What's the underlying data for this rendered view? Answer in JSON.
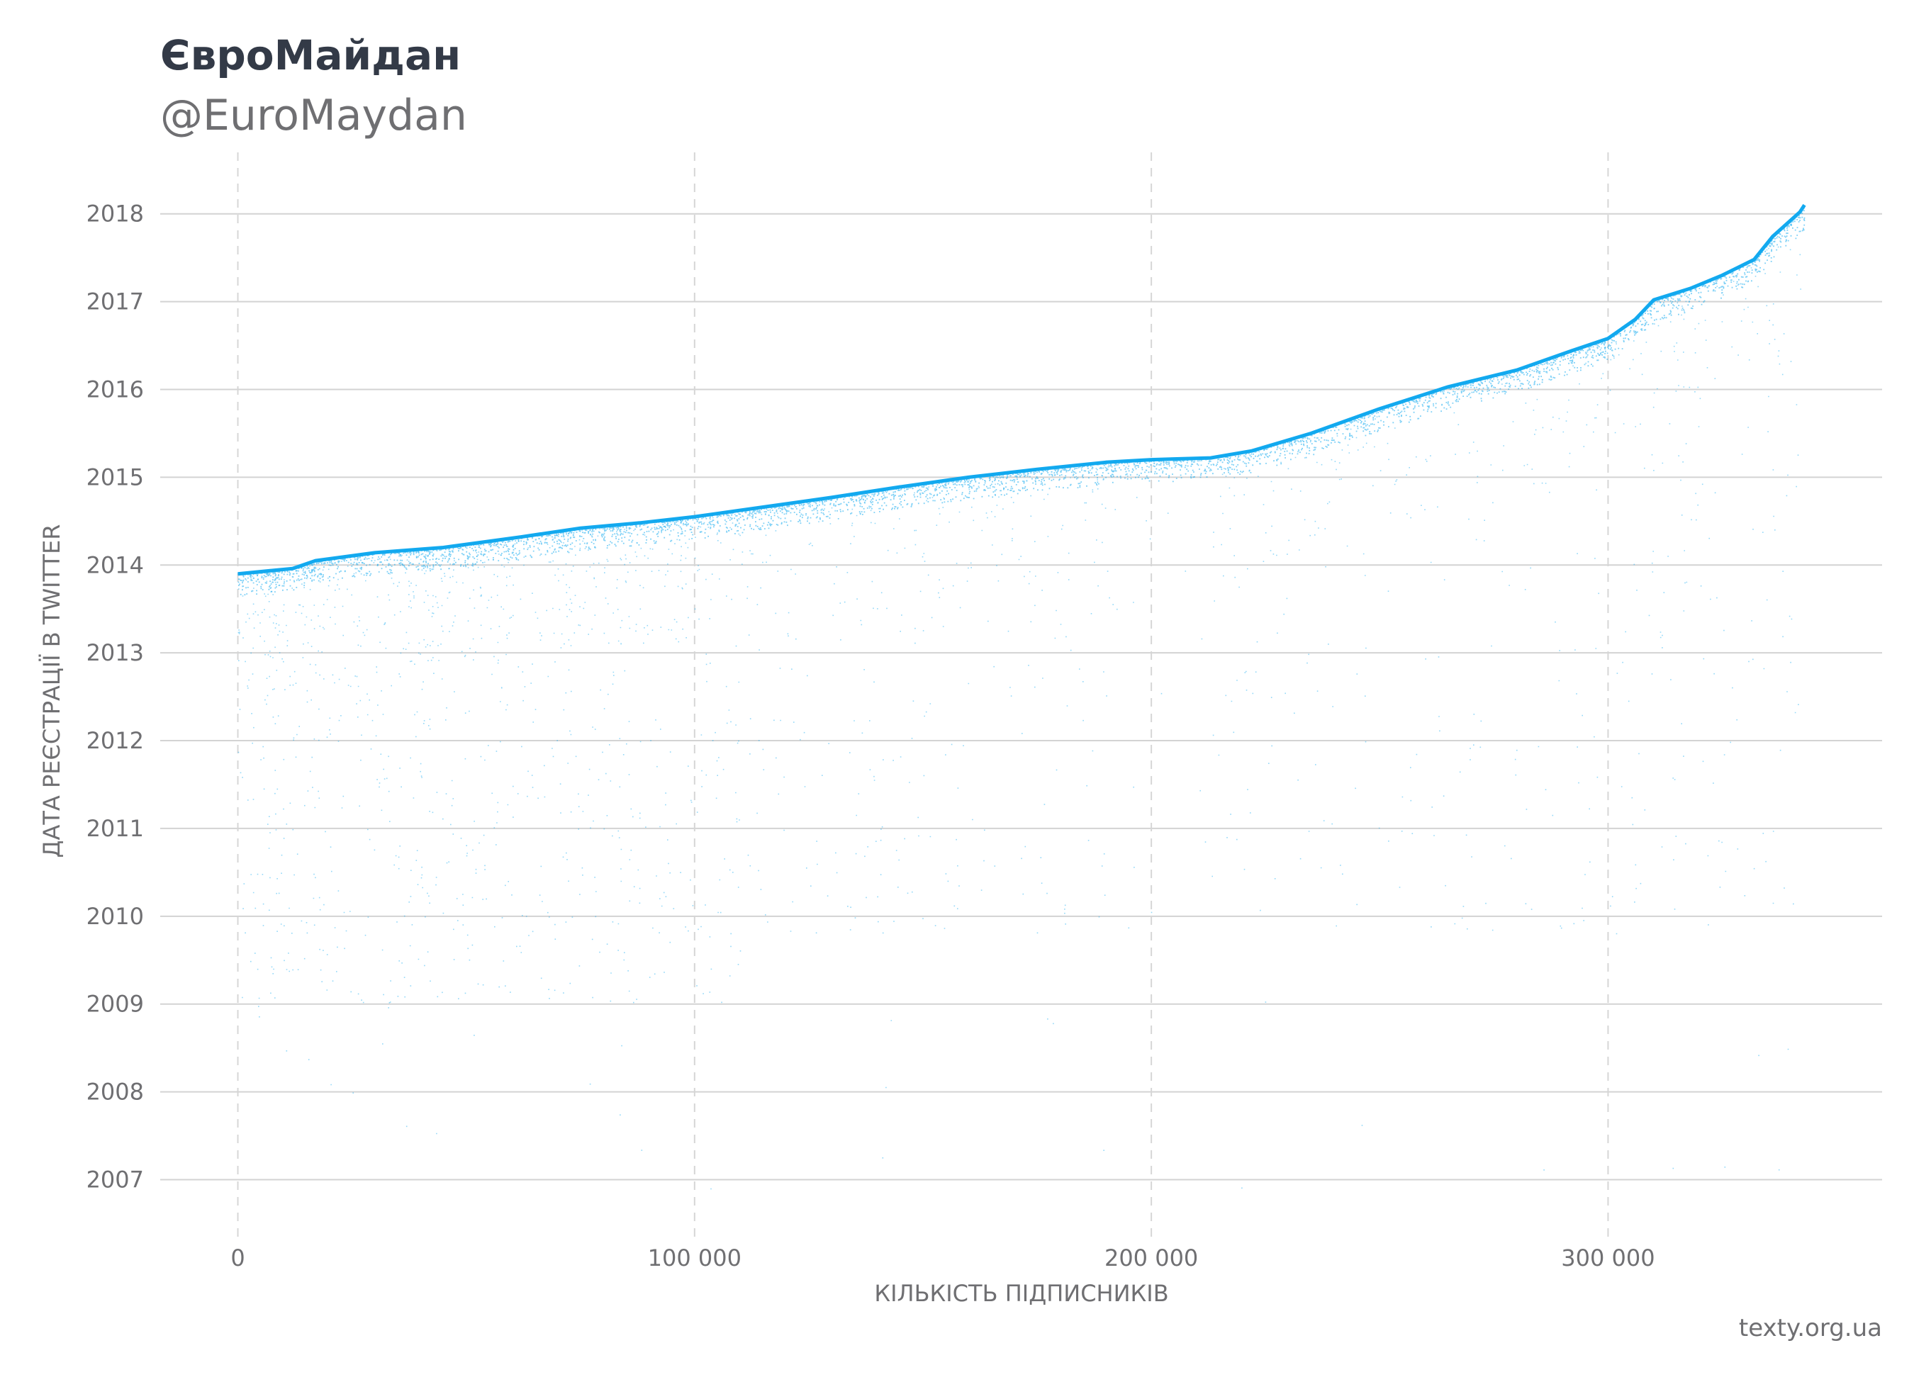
{
  "header": {
    "title": "ЄвроМайдан",
    "subtitle": "@EuroMaydan"
  },
  "footer": {
    "source": "texty.org.ua"
  },
  "chart_data": {
    "type": "scatter",
    "xlabel": "КІЛЬКІСТЬ ПІДПИСНИКІВ",
    "ylabel": "ДАТА РЕЄСТРАЦІЇ В TWITTER",
    "xlim": [
      -17000,
      360000
    ],
    "ylim": [
      2006.35,
      2018.7
    ],
    "x_ticks": [
      0,
      100000,
      200000,
      300000
    ],
    "x_tick_labels": [
      "0",
      "100 000",
      "200 000",
      "300 000"
    ],
    "y_ticks": [
      2007,
      2008,
      2009,
      2010,
      2011,
      2012,
      2013,
      2014,
      2015,
      2016,
      2017,
      2018
    ],
    "grid": "horizontal solid, vertical dashed",
    "point_color": "#12a9ef",
    "series": [
      {
        "description_points": "upper envelope (registration date of newest follower at each follower index)",
        "x": [
          0,
          12000,
          17000,
          30000,
          45000,
          62000,
          75000,
          88000,
          100000,
          115000,
          130000,
          145000,
          160000,
          175000,
          190000,
          200000,
          213000,
          222000,
          235000,
          250000,
          265000,
          280000,
          292000,
          300000,
          306000,
          310000,
          318000,
          325000,
          332000,
          336000,
          342000,
          343000
        ],
        "y": [
          2013.9,
          2013.96,
          2014.05,
          2014.14,
          2014.2,
          2014.32,
          2014.42,
          2014.48,
          2014.55,
          2014.66,
          2014.77,
          2014.89,
          2015.0,
          2015.09,
          2015.17,
          2015.2,
          2015.22,
          2015.3,
          2015.5,
          2015.78,
          2016.03,
          2016.22,
          2016.44,
          2016.58,
          2016.8,
          2017.02,
          2017.15,
          2017.3,
          2017.48,
          2017.74,
          2018.02,
          2018.1
        ]
      }
    ]
  }
}
